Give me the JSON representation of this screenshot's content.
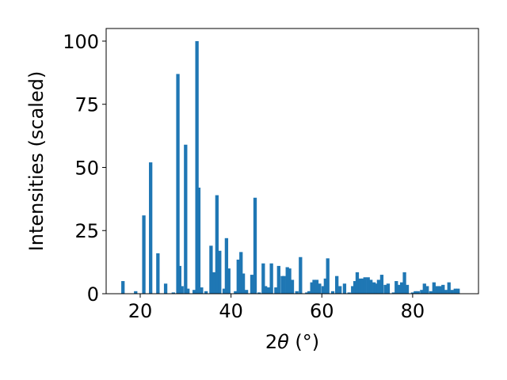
{
  "chart_data": {
    "type": "bar",
    "xlabel_main": "2",
    "xlabel_theta": "θ",
    "xlabel_unit": " (°)",
    "ylabel": "Intensities (scaled)",
    "xlim": [
      12.5,
      94.5
    ],
    "ylim": [
      0,
      105
    ],
    "xticks": [
      20,
      40,
      60,
      80
    ],
    "yticks": [
      0,
      25,
      50,
      75,
      100
    ],
    "bar_width": 0.75,
    "bar_color": "#1f77b4",
    "grid": false,
    "x": [
      16.2,
      19.0,
      20.8,
      22.3,
      23.9,
      25.6,
      27.3,
      28.3,
      28.7,
      29.2,
      30.0,
      30.5,
      31.9,
      32.5,
      32.9,
      33.5,
      34.5,
      35.6,
      36.3,
      36.9,
      37.5,
      38.5,
      39.0,
      39.5,
      41.0,
      41.6,
      42.2,
      42.7,
      43.4,
      44.6,
      45.3,
      46.2,
      47.1,
      47.6,
      48.2,
      48.9,
      49.9,
      50.5,
      51.3,
      51.7,
      52.4,
      52.9,
      53.5,
      54.5,
      55.3,
      56.7,
      57.2,
      57.8,
      58.3,
      58.9,
      59.5,
      60.3,
      60.8,
      61.3,
      62.4,
      63.3,
      64.0,
      65.0,
      66.0,
      66.8,
      67.3,
      67.8,
      68.5,
      69.0,
      69.5,
      70.2,
      70.8,
      71.5,
      72.0,
      72.5,
      73.2,
      74.0,
      74.6,
      75.8,
      76.4,
      77.0,
      77.6,
      78.2,
      78.8,
      80.0,
      80.6,
      81.2,
      82.0,
      82.6,
      83.2,
      84.0,
      84.7,
      85.4,
      86.1,
      86.7,
      87.3,
      88.0,
      88.7,
      89.4,
      90.0
    ],
    "values": [
      5.0,
      1.0,
      31.0,
      52.0,
      16.0,
      4.0,
      0.5,
      87.0,
      11.0,
      3.0,
      59.0,
      2.0,
      1.5,
      100.0,
      42.0,
      2.5,
      1.0,
      19.0,
      8.5,
      39.0,
      17.0,
      2.0,
      22.0,
      10.0,
      1.0,
      13.5,
      16.5,
      8.0,
      1.5,
      7.5,
      38.0,
      0.5,
      12.0,
      3.0,
      2.5,
      12.0,
      2.5,
      11.0,
      7.0,
      7.0,
      10.5,
      10.0,
      5.5,
      1.0,
      14.5,
      0.5,
      1.0,
      4.5,
      5.5,
      5.5,
      4.0,
      3.0,
      6.0,
      14.0,
      1.0,
      7.0,
      3.0,
      4.0,
      0.5,
      3.0,
      5.0,
      8.5,
      6.0,
      6.0,
      6.5,
      6.5,
      5.5,
      4.5,
      4.0,
      5.5,
      7.5,
      3.5,
      4.0,
      0.5,
      5.0,
      3.5,
      4.5,
      8.5,
      3.5,
      0.5,
      1.0,
      1.0,
      1.5,
      4.0,
      3.0,
      1.0,
      4.5,
      3.0,
      3.0,
      3.5,
      1.5,
      4.5,
      1.5,
      2.0,
      2.0
    ]
  }
}
